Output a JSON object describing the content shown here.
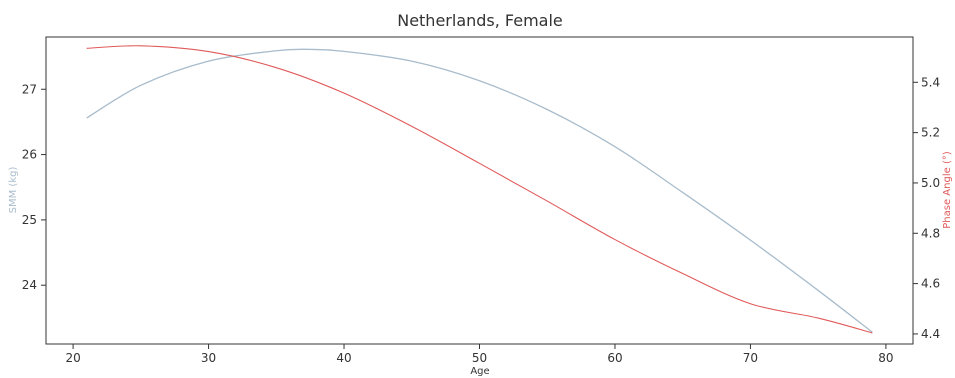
{
  "chart_data": {
    "type": "line",
    "title": "Netherlands, Female",
    "xlabel": "Age",
    "ylabel_left": "SMM (kg)",
    "ylabel_right": "Phase Angle (°)",
    "xlim": [
      18,
      82
    ],
    "ylim_left": [
      23.1,
      27.8
    ],
    "ylim_right": [
      4.36,
      5.58
    ],
    "x_ticks": [
      20,
      30,
      40,
      50,
      60,
      70,
      80
    ],
    "y_left_ticks": [
      24,
      25,
      26,
      27
    ],
    "y_right_ticks": [
      "4.4",
      "4.6",
      "4.8",
      "5.0",
      "5.2",
      "5.4"
    ],
    "grid": false,
    "colors": {
      "smm": "#a8bccc",
      "phase": "#e05a5a",
      "frame": "#333333"
    },
    "series": [
      {
        "axis": "left",
        "x": [
          21,
          25,
          30,
          35,
          37.5,
          40,
          45,
          50,
          55,
          60,
          65,
          70,
          75,
          79
        ],
        "values": [
          26.56,
          27.06,
          27.43,
          27.59,
          27.61,
          27.58,
          27.43,
          27.13,
          26.69,
          26.12,
          25.42,
          24.69,
          23.92,
          23.28
        ]
      },
      {
        "axis": "right",
        "x": [
          21,
          25,
          30,
          35,
          40,
          45,
          50,
          55,
          60,
          65,
          70,
          75,
          79
        ],
        "values": [
          5.535,
          5.545,
          5.522,
          5.458,
          5.357,
          5.225,
          5.078,
          4.928,
          4.775,
          4.64,
          4.52,
          4.463,
          4.404
        ]
      }
    ]
  }
}
